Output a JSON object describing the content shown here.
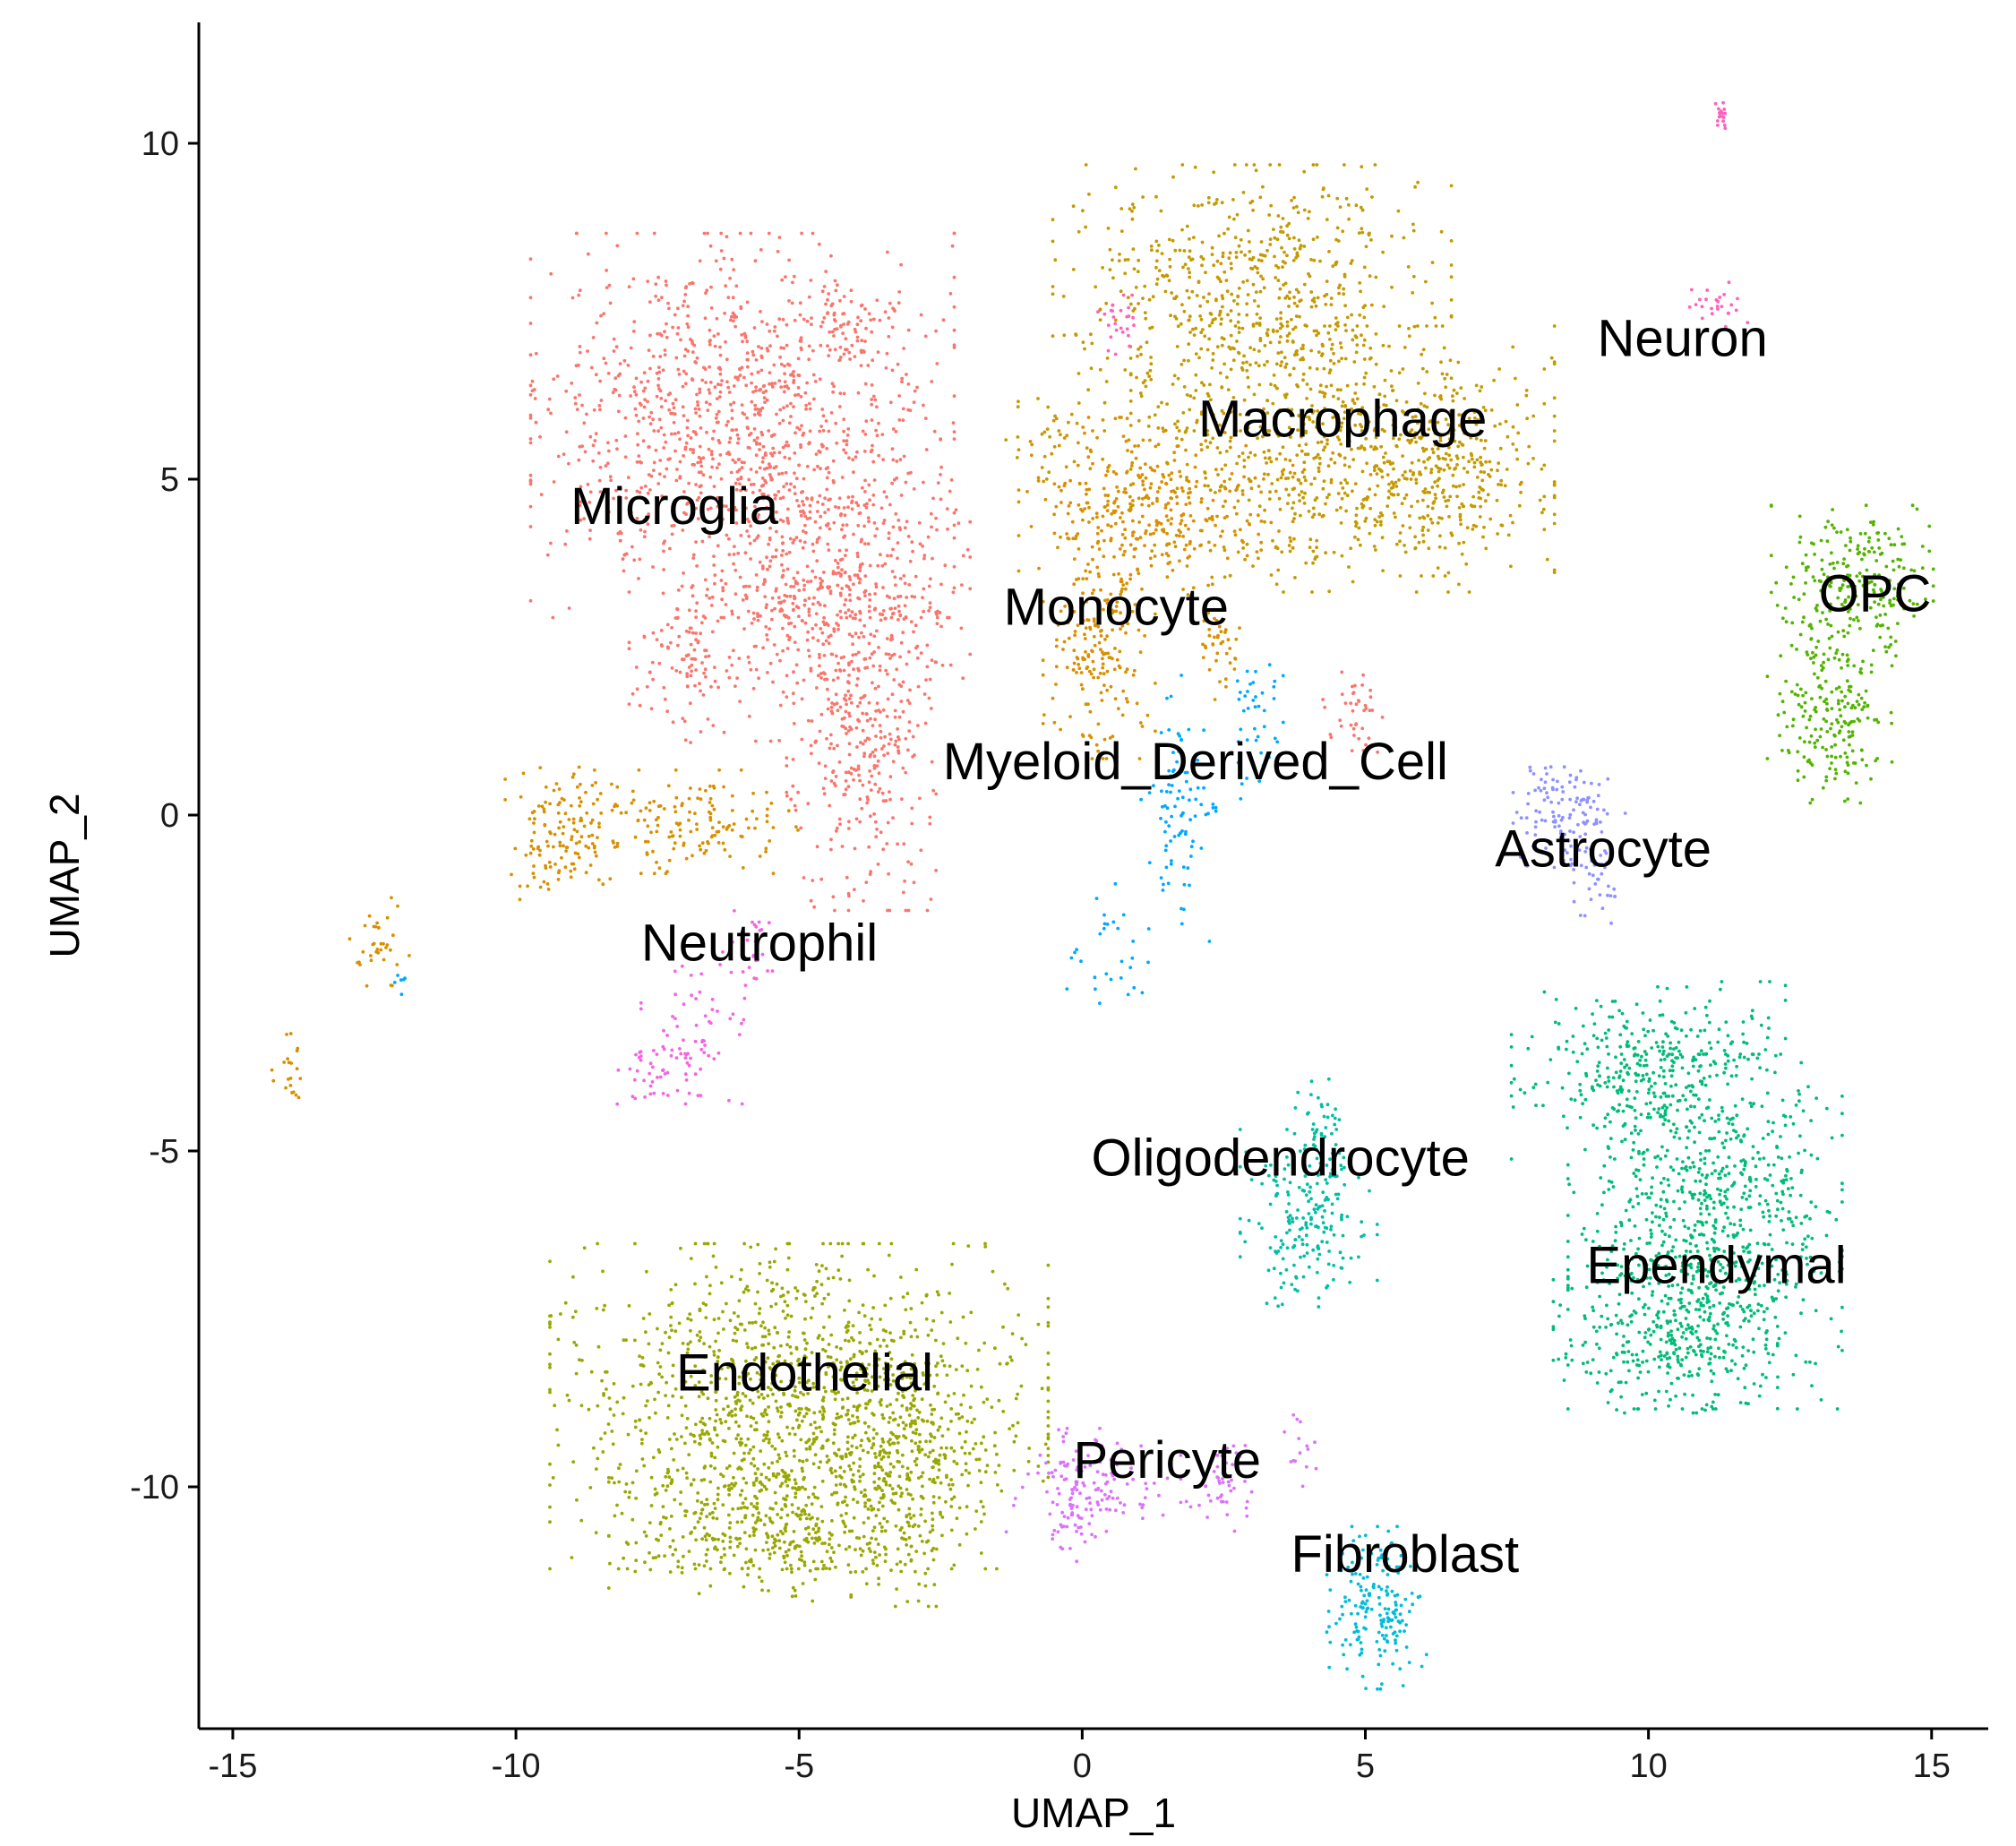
{
  "chart_data": {
    "type": "scatter",
    "xlabel": "UMAP_1",
    "ylabel": "UMAP_2",
    "xlim": [
      -15.6,
      16.0
    ],
    "ylim": [
      -13.6,
      11.8
    ],
    "x_ticks": [
      -15,
      -10,
      -5,
      0,
      5,
      10,
      15
    ],
    "y_ticks": [
      -10,
      -5,
      0,
      5,
      10
    ],
    "grid": false,
    "legend": "none",
    "clusters": [
      {
        "name": "Microglia",
        "color": "#F8766D",
        "label_pos": [
          -7.2,
          4.6
        ],
        "blobs": [
          {
            "center": [
              -6.0,
              5.8
            ],
            "spread": [
              1.7,
              1.3
            ],
            "n": 1100
          },
          {
            "center": [
              -4.4,
              3.3
            ],
            "spread": [
              1.1,
              1.0
            ],
            "n": 500
          },
          {
            "center": [
              -3.9,
              1.0
            ],
            "spread": [
              0.6,
              1.1
            ],
            "n": 300
          },
          {
            "center": [
              -6.9,
              2.4
            ],
            "spread": [
              0.5,
              0.6
            ],
            "n": 120
          },
          {
            "center": [
              -4.1,
              7.3
            ],
            "spread": [
              0.4,
              0.3
            ],
            "n": 50
          },
          {
            "center": [
              4.8,
              1.6
            ],
            "spread": [
              0.25,
              0.35
            ],
            "n": 40
          }
        ]
      },
      {
        "name": "Macrophage",
        "color": "#C49A00",
        "label_pos": [
          4.6,
          5.9
        ],
        "blobs": [
          {
            "center": [
              3.0,
              7.7
            ],
            "spread": [
              1.6,
              0.9
            ],
            "n": 650
          },
          {
            "center": [
              4.6,
              5.3
            ],
            "spread": [
              1.7,
              0.9
            ],
            "n": 650
          },
          {
            "center": [
              6.4,
              5.1
            ],
            "spread": [
              0.8,
              0.7
            ],
            "n": 200
          },
          {
            "center": [
              -0.6,
              5.6
            ],
            "spread": [
              0.35,
              0.4
            ],
            "n": 30
          }
        ]
      },
      {
        "name": "Monocyte",
        "color": "#D89000",
        "label_pos": [
          0.6,
          3.1
        ],
        "blobs": [
          {
            "center": [
              1.3,
              4.6
            ],
            "spread": [
              1.1,
              0.6
            ],
            "n": 360
          },
          {
            "center": [
              0.3,
              2.6
            ],
            "spread": [
              0.45,
              0.8
            ],
            "n": 200
          },
          {
            "center": [
              -9.2,
              -0.3
            ],
            "spread": [
              0.45,
              0.5
            ],
            "n": 130
          },
          {
            "center": [
              -7.0,
              -0.1
            ],
            "spread": [
              0.9,
              0.35
            ],
            "n": 150
          },
          {
            "center": [
              -12.4,
              -2.0
            ],
            "spread": [
              0.25,
              0.35
            ],
            "n": 35
          },
          {
            "center": [
              -14.0,
              -3.8
            ],
            "spread": [
              0.15,
              0.25
            ],
            "n": 20
          },
          {
            "center": [
              2.4,
              2.6
            ],
            "spread": [
              0.2,
              0.4
            ],
            "n": 40
          }
        ]
      },
      {
        "name": "Neuron",
        "color": "#FF62BC",
        "label_pos": [
          10.6,
          7.1
        ],
        "blobs": [
          {
            "center": [
              11.3,
              10.4
            ],
            "spread": [
              0.06,
              0.1
            ],
            "n": 18
          },
          {
            "center": [
              11.2,
              7.6
            ],
            "spread": [
              0.25,
              0.15
            ],
            "n": 25
          },
          {
            "center": [
              0.6,
              7.3
            ],
            "spread": [
              0.15,
              0.2
            ],
            "n": 25
          }
        ]
      },
      {
        "name": "OPC",
        "color": "#53B400",
        "label_pos": [
          14.0,
          3.3
        ],
        "blobs": [
          {
            "center": [
              13.6,
              3.4
            ],
            "spread": [
              0.65,
              0.55
            ],
            "n": 240
          },
          {
            "center": [
              13.2,
              1.5
            ],
            "spread": [
              0.5,
              0.6
            ],
            "n": 200
          }
        ]
      },
      {
        "name": "Astrocyte",
        "color": "#8F91FF",
        "label_pos": [
          9.2,
          -0.5
        ],
        "blobs": [
          {
            "center": [
              8.6,
              0.1
            ],
            "spread": [
              0.45,
              0.4
            ],
            "n": 120
          },
          {
            "center": [
              9.0,
              -0.9
            ],
            "spread": [
              0.25,
              0.4
            ],
            "n": 40
          }
        ]
      },
      {
        "name": "Myeloid_Derived_Cell",
        "color": "#00A9FF",
        "label_pos": [
          2.0,
          0.8
        ],
        "blobs": [
          {
            "center": [
              1.7,
              0.1
            ],
            "spread": [
              0.3,
              0.9
            ],
            "n": 90
          },
          {
            "center": [
              0.5,
              -1.9
            ],
            "spread": [
              0.35,
              0.45
            ],
            "n": 30
          },
          {
            "center": [
              3.0,
              1.4
            ],
            "spread": [
              0.25,
              0.6
            ],
            "n": 40
          },
          {
            "center": [
              -12.0,
              -2.5
            ],
            "spread": [
              0.1,
              0.1
            ],
            "n": 6
          }
        ]
      },
      {
        "name": "Neutrophil",
        "color": "#F564E3",
        "label_pos": [
          -5.7,
          -1.9
        ],
        "blobs": [
          {
            "center": [
              -6.8,
              -3.2
            ],
            "spread": [
              0.45,
              0.5
            ],
            "n": 60
          },
          {
            "center": [
              -7.6,
              -3.9
            ],
            "spread": [
              0.3,
              0.25
            ],
            "n": 40
          },
          {
            "center": [
              -5.8,
              -1.9
            ],
            "spread": [
              0.25,
              0.35
            ],
            "n": 25
          }
        ]
      },
      {
        "name": "Oligodendrocyte",
        "color": "#00BFA4",
        "label_pos": [
          3.5,
          -5.1
        ],
        "blobs": [
          {
            "center": [
              4.0,
              -6.0
            ],
            "spread": [
              0.55,
              0.6
            ],
            "n": 200
          },
          {
            "center": [
              4.2,
              -4.6
            ],
            "spread": [
              0.2,
              0.4
            ],
            "n": 40
          }
        ]
      },
      {
        "name": "Ependymal",
        "color": "#00BC79",
        "label_pos": [
          11.2,
          -6.7
        ],
        "blobs": [
          {
            "center": [
              10.0,
              -3.8
            ],
            "spread": [
              1.1,
              0.6
            ],
            "n": 350
          },
          {
            "center": [
              11.0,
              -6.2
            ],
            "spread": [
              1.1,
              1.2
            ],
            "n": 800
          },
          {
            "center": [
              10.3,
              -7.8
            ],
            "spread": [
              0.9,
              0.5
            ],
            "n": 250
          }
        ]
      },
      {
        "name": "Endothelial",
        "color": "#99A800",
        "label_pos": [
          -4.9,
          -8.3
        ],
        "blobs": [
          {
            "center": [
              -5.0,
              -8.8
            ],
            "spread": [
              2.0,
              1.1
            ],
            "n": 1300
          },
          {
            "center": [
              -5.5,
              -10.6
            ],
            "spread": [
              1.3,
              0.5
            ],
            "n": 350
          },
          {
            "center": [
              -3.1,
              -9.8
            ],
            "spread": [
              0.6,
              0.9
            ],
            "n": 200
          }
        ]
      },
      {
        "name": "Pericyte",
        "color": "#DB72FB",
        "label_pos": [
          1.5,
          -9.6
        ],
        "blobs": [
          {
            "center": [
              0.2,
              -9.9
            ],
            "spread": [
              0.7,
              0.35
            ],
            "n": 120
          },
          {
            "center": [
              -0.2,
              -10.5
            ],
            "spread": [
              0.2,
              0.35
            ],
            "n": 40
          },
          {
            "center": [
              2.5,
              -10.0
            ],
            "spread": [
              0.3,
              0.3
            ],
            "n": 50
          },
          {
            "center": [
              3.8,
              -9.4
            ],
            "spread": [
              0.15,
              0.3
            ],
            "n": 15
          }
        ]
      },
      {
        "name": "Fibroblast",
        "color": "#00BCD8",
        "label_pos": [
          5.7,
          -11.0
        ],
        "blobs": [
          {
            "center": [
              5.2,
              -11.8
            ],
            "spread": [
              0.4,
              0.55
            ],
            "n": 180
          }
        ]
      }
    ]
  }
}
